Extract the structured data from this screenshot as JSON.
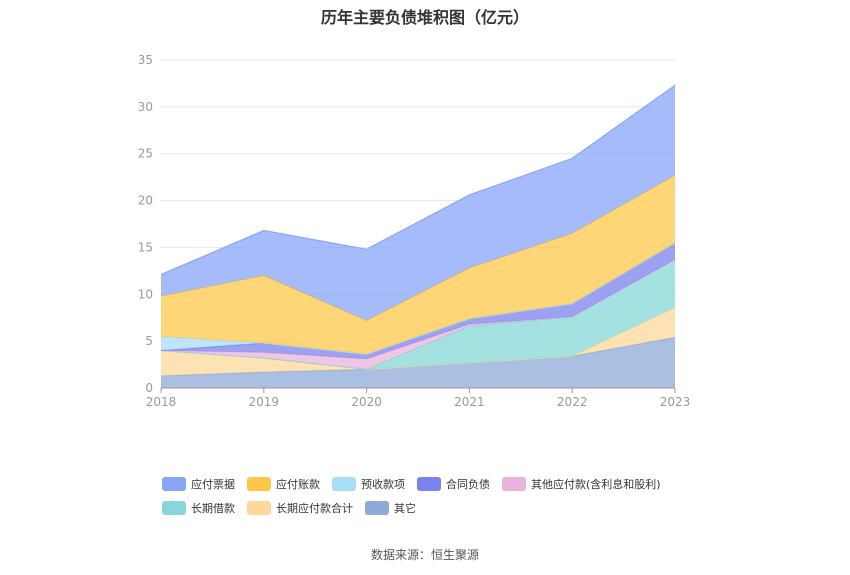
{
  "chart_data": {
    "type": "area",
    "stacked": true,
    "title": "历年主要负债堆积图（亿元）",
    "categories": [
      "2018",
      "2019",
      "2020",
      "2021",
      "2022",
      "2023"
    ],
    "ylim": [
      0,
      35
    ],
    "yticks": [
      0,
      5,
      10,
      15,
      20,
      25,
      30,
      35
    ],
    "grid": true,
    "legend_position": "bottom",
    "series": [
      {
        "name": "其它",
        "color": "#8eaad8",
        "values": [
          1.3,
          1.7,
          2.0,
          2.7,
          3.4,
          5.4
        ]
      },
      {
        "name": "长期应付款合计",
        "color": "#fcd89a",
        "values": [
          2.7,
          1.5,
          0.0,
          0.0,
          0.0,
          3.2
        ]
      },
      {
        "name": "长期借款",
        "color": "#86d8d8",
        "values": [
          0.0,
          0.0,
          0.0,
          3.9,
          4.2,
          5.1
        ]
      },
      {
        "name": "其他应付款(含利息和股利)",
        "color": "#e8b4dc",
        "values": [
          0.0,
          0.6,
          1.1,
          0.2,
          0.0,
          0.0
        ]
      },
      {
        "name": "合同负债",
        "color": "#7b82ee",
        "values": [
          0.0,
          1.0,
          0.5,
          0.6,
          1.4,
          1.8
        ]
      },
      {
        "name": "预收款项",
        "color": "#a8def6",
        "values": [
          1.5,
          0.0,
          0.0,
          0.0,
          0.0,
          0.0
        ]
      },
      {
        "name": "应付账款",
        "color": "#fdc84a",
        "values": [
          4.3,
          7.2,
          3.6,
          5.4,
          7.5,
          7.2
        ]
      },
      {
        "name": "应付票据",
        "color": "#88a6f8",
        "values": [
          2.3,
          4.8,
          7.6,
          7.8,
          8.0,
          9.6
        ]
      }
    ],
    "legend": [
      [
        "应付票据",
        "应付账款",
        "预收款项",
        "合同负债",
        "其他应付款(含利息和股利)"
      ],
      [
        "长期借款",
        "长期应付款合计",
        "其它"
      ]
    ]
  },
  "source": "数据来源：恒生聚源"
}
